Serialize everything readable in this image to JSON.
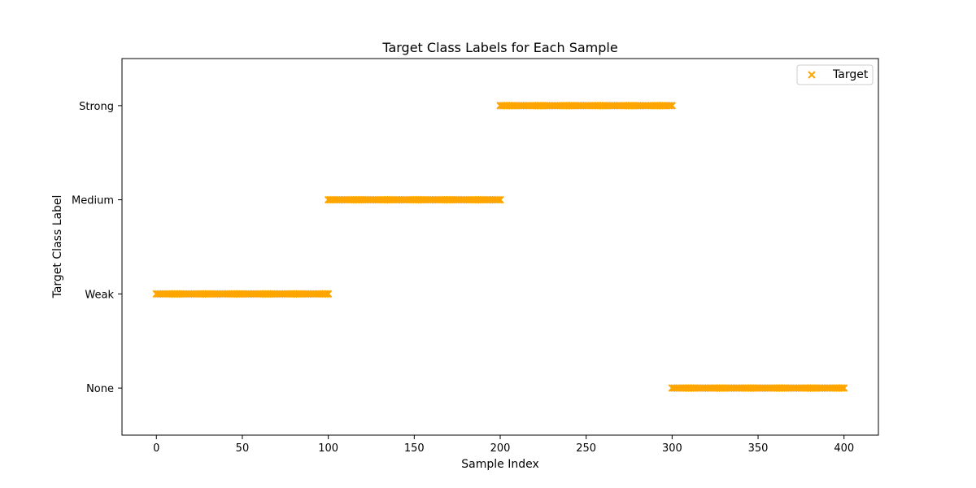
{
  "chart_data": {
    "type": "scatter",
    "title": "Target Class Labels for Each Sample",
    "xlabel": "Sample Index",
    "ylabel": "Target Class Label",
    "xlim": [
      -20,
      420
    ],
    "x_ticks": [
      0,
      50,
      100,
      150,
      200,
      250,
      300,
      350,
      400
    ],
    "x_tick_labels": [
      "0",
      "50",
      "100",
      "150",
      "200",
      "250",
      "300",
      "350",
      "400"
    ],
    "ylim": [
      -0.5,
      3.5
    ],
    "y_ticks": [
      0,
      1,
      2,
      3
    ],
    "y_tick_labels": [
      "None",
      "Weak",
      "Medium",
      "Strong"
    ],
    "grid": false,
    "legend": {
      "position": "top-right",
      "entries": [
        "Target"
      ]
    },
    "marker": "x",
    "color": "#ffa500",
    "series": [
      {
        "name": "Target",
        "segments": [
          {
            "x_start": 0,
            "x_end": 100,
            "y": 1,
            "label": "Weak"
          },
          {
            "x_start": 100,
            "x_end": 200,
            "y": 2,
            "label": "Medium"
          },
          {
            "x_start": 200,
            "x_end": 300,
            "y": 3,
            "label": "Strong"
          },
          {
            "x_start": 300,
            "x_end": 400,
            "y": 0,
            "label": "None"
          }
        ]
      }
    ]
  }
}
